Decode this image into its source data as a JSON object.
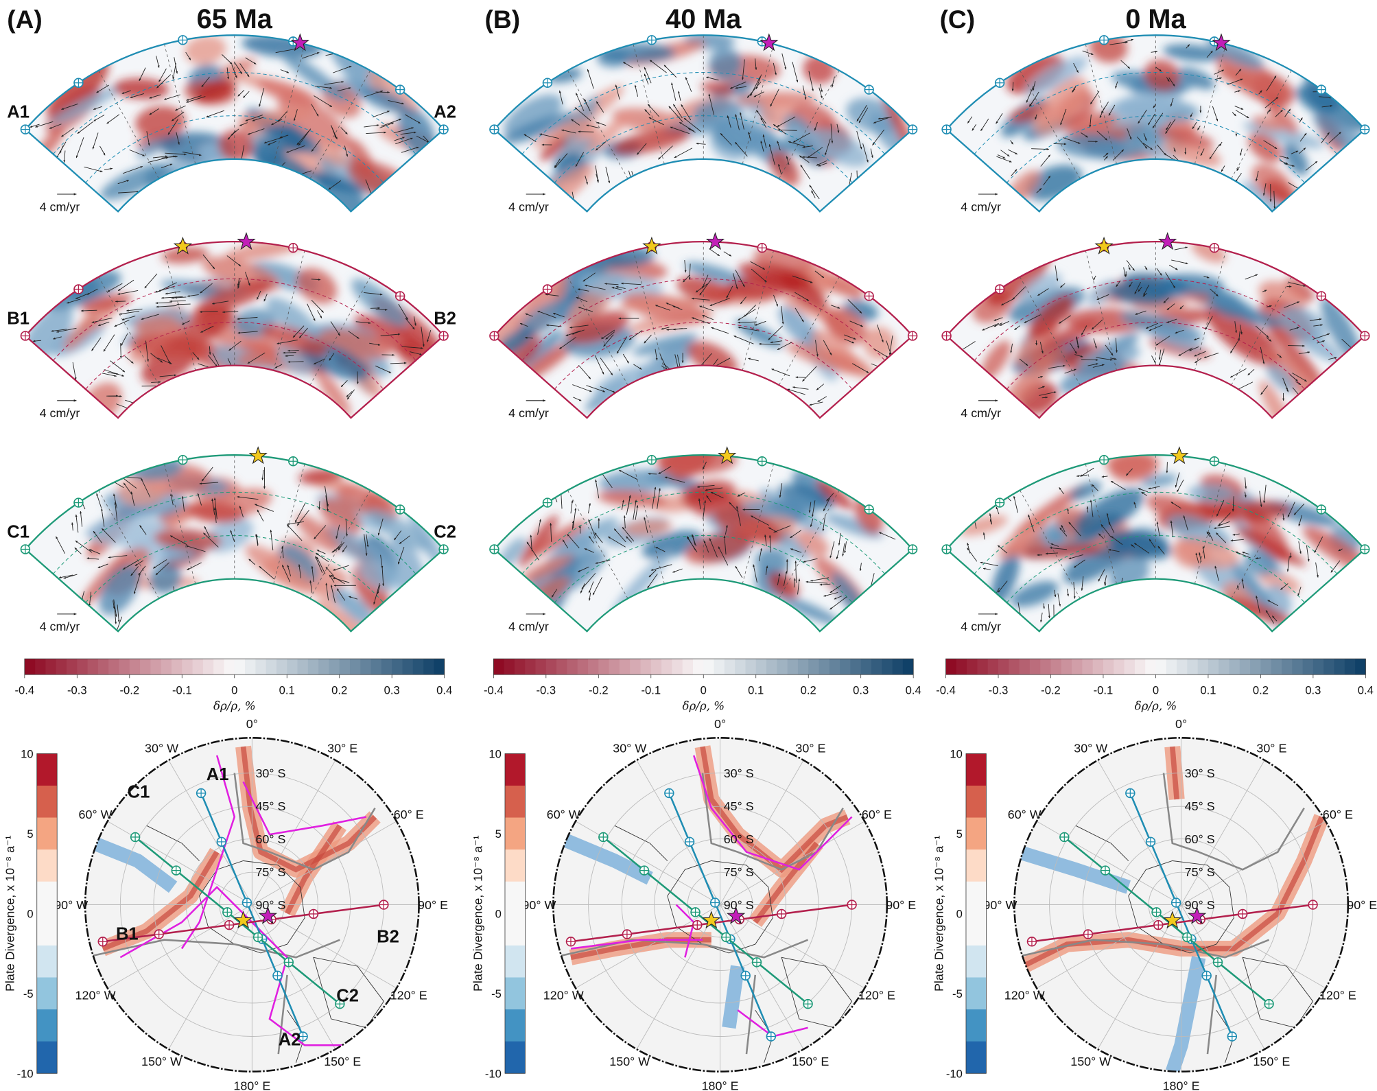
{
  "panels": [
    {
      "label": "(A)",
      "title": "65 Ma"
    },
    {
      "label": "(B)",
      "title": "40 Ma"
    },
    {
      "label": "(C)",
      "title": "0 Ma"
    }
  ],
  "profile_labels": [
    "A1",
    "A2",
    "B1",
    "B2",
    "C1",
    "C2"
  ],
  "velocity_scale": "4 cm/yr",
  "density_colorbar": {
    "ticks": [
      "-0.4",
      "-0.3",
      "-0.2",
      "-0.1",
      "0",
      "0.1",
      "0.2",
      "0.3",
      "0.4"
    ],
    "label": "δρ/ρ, %"
  },
  "divergence_colorbar": {
    "ticks": [
      "10",
      "5",
      "0",
      "-5",
      "-10"
    ],
    "label": "Plate Divergence, x 10⁻⁸ a⁻¹"
  },
  "map_longitude_labels": [
    "0°",
    "30° E",
    "60° E",
    "90° E",
    "120° E",
    "150° E",
    "180° E",
    "150° W",
    "120° W",
    "90° W",
    "60° W",
    "30° W"
  ],
  "map_latitude_labels": [
    "30° S",
    "45° S",
    "60° S",
    "75° S",
    "90° S"
  ]
}
